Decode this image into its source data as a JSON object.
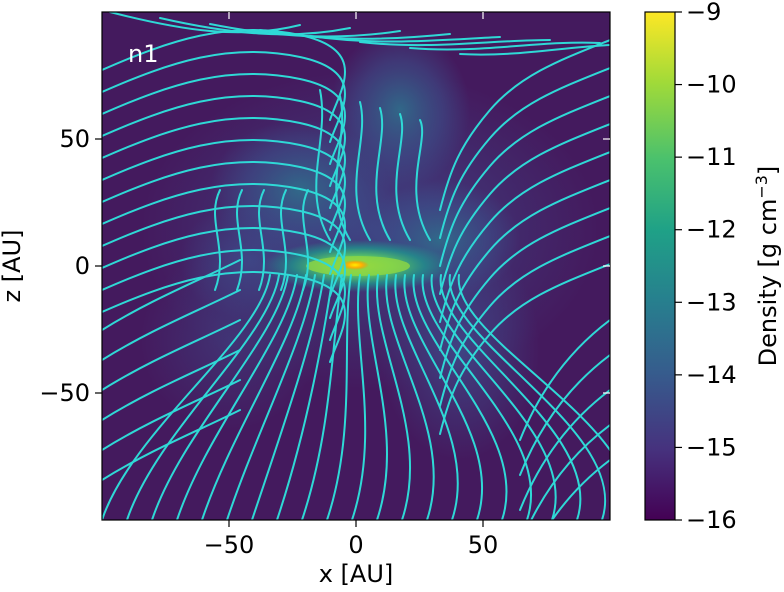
{
  "chart_data": {
    "type": "heatmap",
    "panel_label": "n1",
    "xlabel": "x [AU]",
    "ylabel": "z [AU]",
    "xlim": [
      -100,
      100
    ],
    "ylim": [
      -100,
      100
    ],
    "x_ticks": [
      -50,
      0,
      50
    ],
    "x_tick_labels": [
      "−50",
      "0",
      "50"
    ],
    "y_ticks": [
      50,
      0,
      -50
    ],
    "y_tick_labels": [
      "50",
      "0",
      "−50"
    ],
    "colorbar": {
      "label": "Density [g cm⁻³]",
      "range": [
        -16,
        -9
      ],
      "ticks": [
        -9,
        -10,
        -11,
        -12,
        -13,
        -14,
        -15,
        -16
      ],
      "tick_labels": [
        "−9",
        "−10",
        "−11",
        "−12",
        "−13",
        "−14",
        "−15",
        "−16"
      ],
      "colormap": "viridis"
    },
    "density_features": {
      "background_log_density": -15.6,
      "disk_center_log_density": -9.0,
      "disk_half_length_au": 20,
      "disk_orientation": "horizontal",
      "envelope_log_density": -13.5
    },
    "streamline_color": "#2fd9d6",
    "disk_center_color": "#ffee00"
  }
}
